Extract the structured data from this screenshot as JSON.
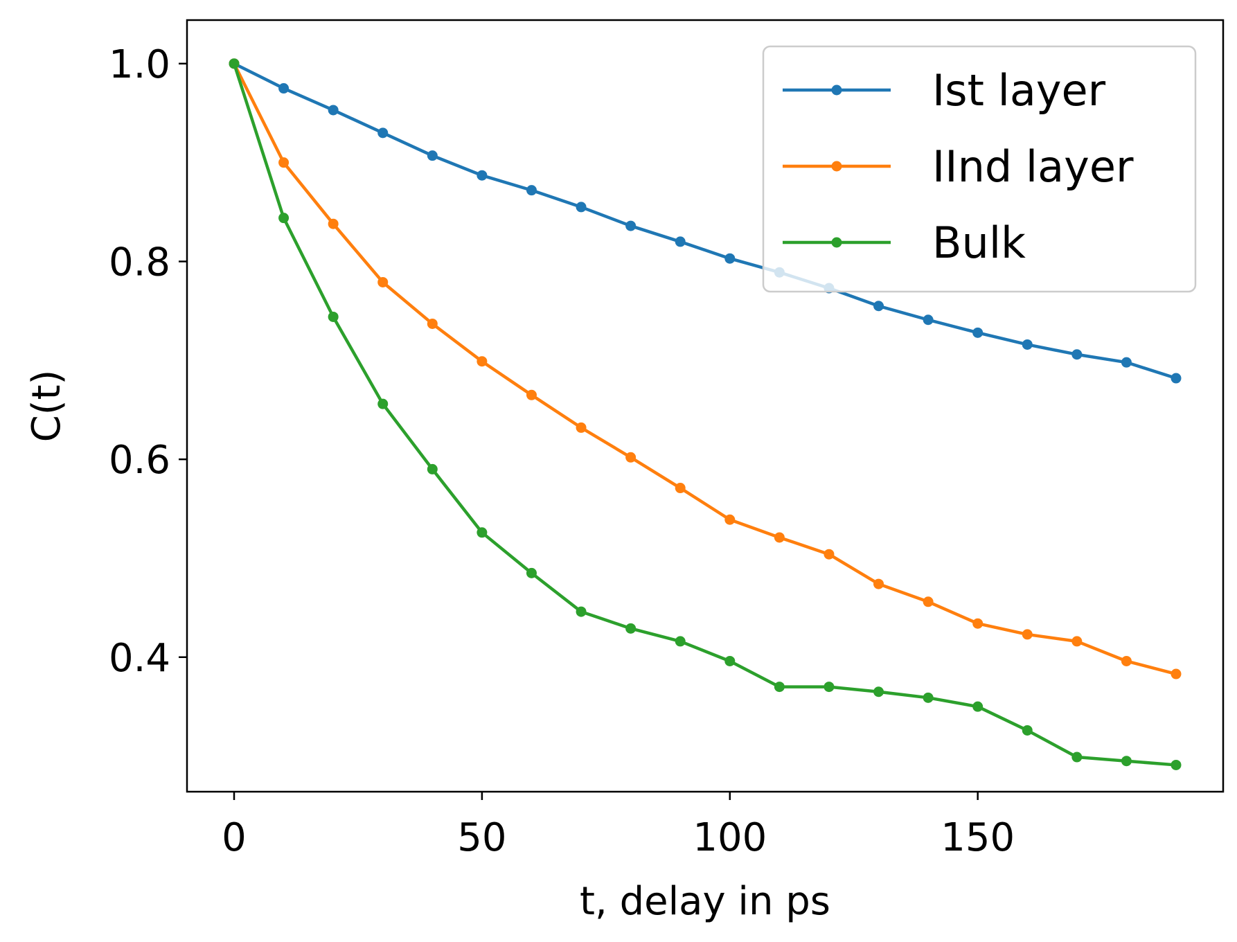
{
  "chart_data": {
    "type": "line",
    "title": "",
    "xlabel": "t, delay in ps",
    "ylabel": "C(t)",
    "xlim": [
      -9.5,
      199.5
    ],
    "ylim": [
      0.264,
      1.044
    ],
    "xticks": [
      0,
      50,
      100,
      150
    ],
    "xtick_labels": [
      "0",
      "50",
      "100",
      "150"
    ],
    "yticks": [
      0.4,
      0.6,
      0.8,
      1.0
    ],
    "ytick_labels": [
      "0.4",
      "0.6",
      "0.8",
      "1.0"
    ],
    "grid": false,
    "legend_position": "top-right",
    "x": [
      0,
      10,
      20,
      30,
      40,
      50,
      60,
      70,
      80,
      90,
      100,
      110,
      120,
      130,
      140,
      150,
      160,
      170,
      180,
      190
    ],
    "series": [
      {
        "name": "Ist layer",
        "color": "#1f77b4",
        "values": [
          1.0,
          0.975,
          0.953,
          0.93,
          0.907,
          0.887,
          0.872,
          0.855,
          0.836,
          0.82,
          0.803,
          0.789,
          0.773,
          0.755,
          0.741,
          0.728,
          0.716,
          0.706,
          0.698,
          0.682
        ]
      },
      {
        "name": "IInd layer",
        "color": "#ff7f0e",
        "values": [
          1.0,
          0.9,
          0.838,
          0.779,
          0.737,
          0.699,
          0.665,
          0.632,
          0.602,
          0.571,
          0.539,
          0.521,
          0.504,
          0.474,
          0.456,
          0.434,
          0.423,
          0.416,
          0.396,
          0.383
        ]
      },
      {
        "name": "Bulk",
        "color": "#2ca02c",
        "values": [
          1.0,
          0.844,
          0.744,
          0.656,
          0.59,
          0.526,
          0.485,
          0.446,
          0.429,
          0.416,
          0.396,
          0.37,
          0.37,
          0.365,
          0.359,
          0.35,
          0.326,
          0.299,
          0.295,
          0.291
        ]
      }
    ]
  }
}
